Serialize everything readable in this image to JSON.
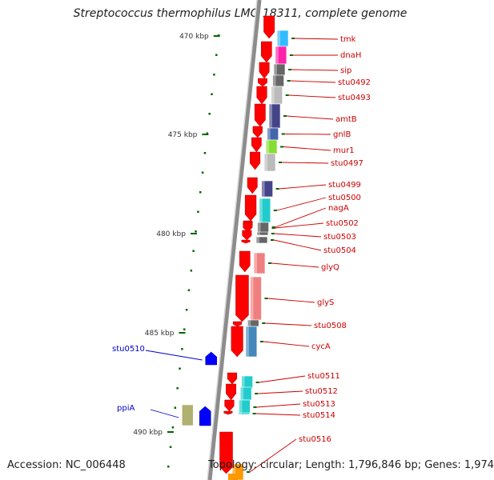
{
  "title": "Streptococcus thermophilus LMG 18311, complete genome",
  "footer": {
    "accession": "Accession: NC_006448",
    "topology": "Topology: circular; Length: 1,796,846 bp; Genes: 1,974"
  },
  "colors": {
    "backbone": "#808080",
    "forward_gene": "#ff0000",
    "reverse_gene": "#0000ff",
    "forward_label": "#cc0000",
    "reverse_label": "#0000cc",
    "tick": "#006600"
  },
  "scale_labels": [
    "470 kbp",
    "475 kbp",
    "480 kbp",
    "485 kbp",
    "490 kbp"
  ],
  "genes_forward": [
    {
      "name": "tmk",
      "function_color": "#33bbff"
    },
    {
      "name": "dnaH",
      "function_color": "#ff22aa"
    },
    {
      "name": "sip",
      "function_color": "#666666"
    },
    {
      "name": "stu0492",
      "function_color": "#666666"
    },
    {
      "name": "stu0493",
      "function_color": "#bbbbbb"
    },
    {
      "name": "amtB",
      "function_color": "#444488"
    },
    {
      "name": "gnlB",
      "function_color": "#4466aa"
    },
    {
      "name": "mur1",
      "function_color": "#88dd33"
    },
    {
      "name": "stu0497",
      "function_color": "#bbbbbb"
    },
    {
      "name": "stu0499",
      "function_color": "#444488"
    },
    {
      "name": "stu0500",
      "function_color": "#22cccc"
    },
    {
      "name": "nagA",
      "function_color": "#22cccc"
    },
    {
      "name": "stu0502",
      "function_color": "#666666"
    },
    {
      "name": "stu0503",
      "function_color": "#666666"
    },
    {
      "name": "stu0504",
      "function_color": "#666666"
    },
    {
      "name": "glyQ",
      "function_color": "#f08080"
    },
    {
      "name": "glyS",
      "function_color": "#f08080"
    },
    {
      "name": "stu0508",
      "function_color": "#666666"
    },
    {
      "name": "cycA",
      "function_color": "#4488bb"
    },
    {
      "name": "stu0511",
      "function_color": "#22cccc"
    },
    {
      "name": "stu0512",
      "function_color": "#22cccc"
    },
    {
      "name": "stu0513",
      "function_color": "#22cccc"
    },
    {
      "name": "stu0514",
      "function_color": "#22cccc"
    },
    {
      "name": "stu0516",
      "function_color": "#ff9900"
    }
  ],
  "genes_reverse": [
    {
      "name": "stu0510",
      "function_color": "#0000ff"
    },
    {
      "name": "ppiA",
      "function_color": "#b0b070"
    }
  ]
}
